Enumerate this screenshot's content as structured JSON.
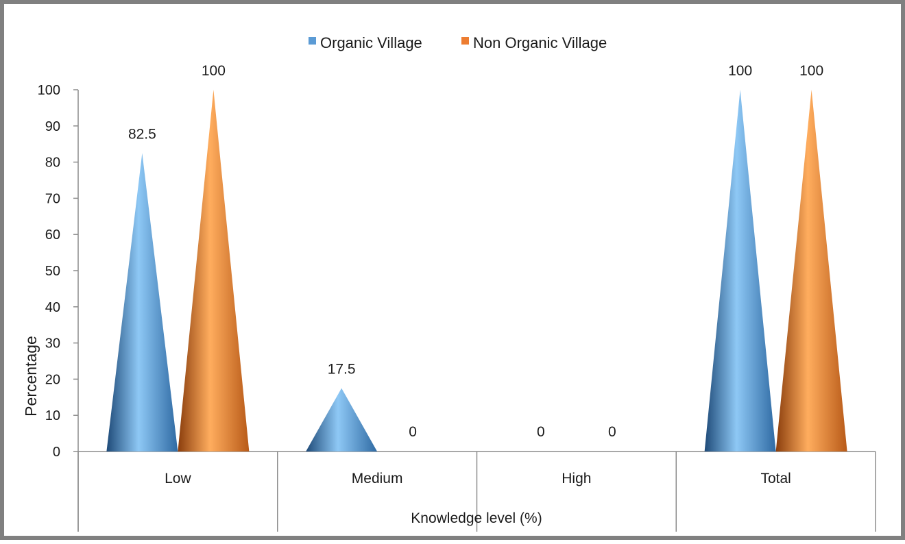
{
  "chart_data": {
    "type": "bar",
    "bar_shape": "cone",
    "categories": [
      "Low",
      "Medium",
      "High",
      "Total"
    ],
    "series": [
      {
        "name": "Organic Village",
        "values": [
          82.5,
          17.5,
          0,
          100
        ],
        "color": "#5b9bd5"
      },
      {
        "name": "Non Organic Village",
        "values": [
          100,
          0,
          0,
          100
        ],
        "color": "#ed7d31"
      }
    ],
    "data_labels": [
      [
        "82.5",
        "17.5",
        "0",
        "100"
      ],
      [
        "100",
        "0",
        "0",
        "100"
      ]
    ],
    "title": "",
    "xlabel": "Knowledge level (%)",
    "ylabel": "Percentage",
    "ylim": [
      0,
      100
    ],
    "yticks": [
      0,
      10,
      20,
      30,
      40,
      50,
      60,
      70,
      80,
      90,
      100
    ],
    "grid": false,
    "legend_position": "top-center"
  }
}
